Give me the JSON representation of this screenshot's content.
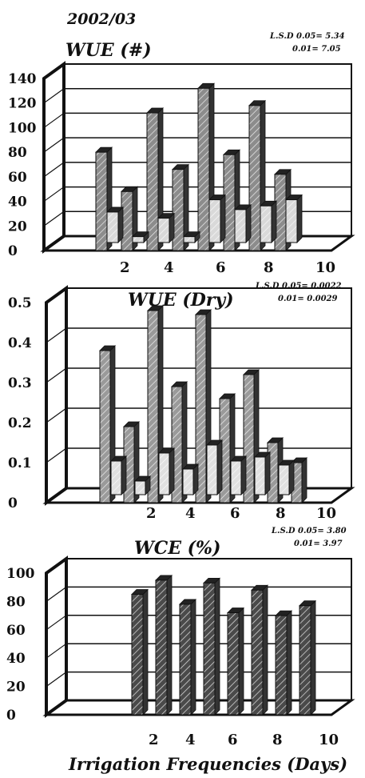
{
  "season": "2002/03",
  "xlabel": "Irrigation Frequencies (Days)",
  "chart_data": [
    {
      "type": "bar",
      "title": "WUE (#)",
      "lsd": [
        "L.S.D 0.05= 5.34",
        "0.01= 7.05"
      ],
      "ylim": [
        0,
        140
      ],
      "yticks": [
        "0",
        "20",
        "40",
        "60",
        "80",
        "100",
        "120",
        "140"
      ],
      "xticks": [
        "2",
        "4",
        "6",
        "8",
        "10"
      ],
      "grid": true,
      "categories": [
        "2",
        "3",
        "4",
        "5",
        "6",
        "7",
        "8",
        "9"
      ],
      "series": [
        {
          "values": [
            80,
            48,
            112,
            66,
            132,
            78,
            118,
            62
          ],
          "fill": "#8c8c8c"
        },
        {
          "values": [
            30,
            10,
            25,
            10,
            40,
            32,
            35,
            40
          ],
          "fill": "#d9d9d9"
        }
      ]
    },
    {
      "type": "bar",
      "title": "WUE (Dry)",
      "lsd": [
        "L.S.D 0.05= 0.0022",
        "0.01= 0.0029"
      ],
      "ylim": [
        0,
        0.5
      ],
      "yticks": [
        "0",
        "0.1",
        "0.2",
        "0.3",
        "0.4",
        "0.5"
      ],
      "xticks": [
        "2",
        "4",
        "6",
        "8",
        "10"
      ],
      "grid": true,
      "categories": [
        "2",
        "3",
        "4",
        "5",
        "6",
        "7",
        "8",
        "9",
        "10"
      ],
      "series": [
        {
          "values": [
            0.38,
            0.19,
            0.48,
            0.29,
            0.47,
            0.26,
            0.32,
            0.15,
            0.1
          ],
          "fill": "#9a9a9a"
        },
        {
          "values": [
            0.1,
            0.05,
            0.12,
            0.08,
            0.14,
            0.1,
            0.11,
            0.09,
            0
          ],
          "fill": "#e0e0e0"
        }
      ]
    },
    {
      "type": "bar",
      "title": "WCE (%)",
      "lsd": [
        "L.S.D 0.05= 3.80",
        "0.01= 3.97"
      ],
      "ylim": [
        0,
        100
      ],
      "yticks": [
        "0",
        "20",
        "40",
        "60",
        "80",
        "100"
      ],
      "xticks": [
        "2",
        "4",
        "6",
        "8",
        "10"
      ],
      "grid": true,
      "categories": [
        "2",
        "3",
        "4",
        "5",
        "6",
        "7",
        "8",
        "9"
      ],
      "series": [
        {
          "values": [
            85,
            95,
            78,
            93,
            72,
            88,
            70,
            77
          ],
          "fill": "#4a4a4a"
        }
      ]
    }
  ]
}
